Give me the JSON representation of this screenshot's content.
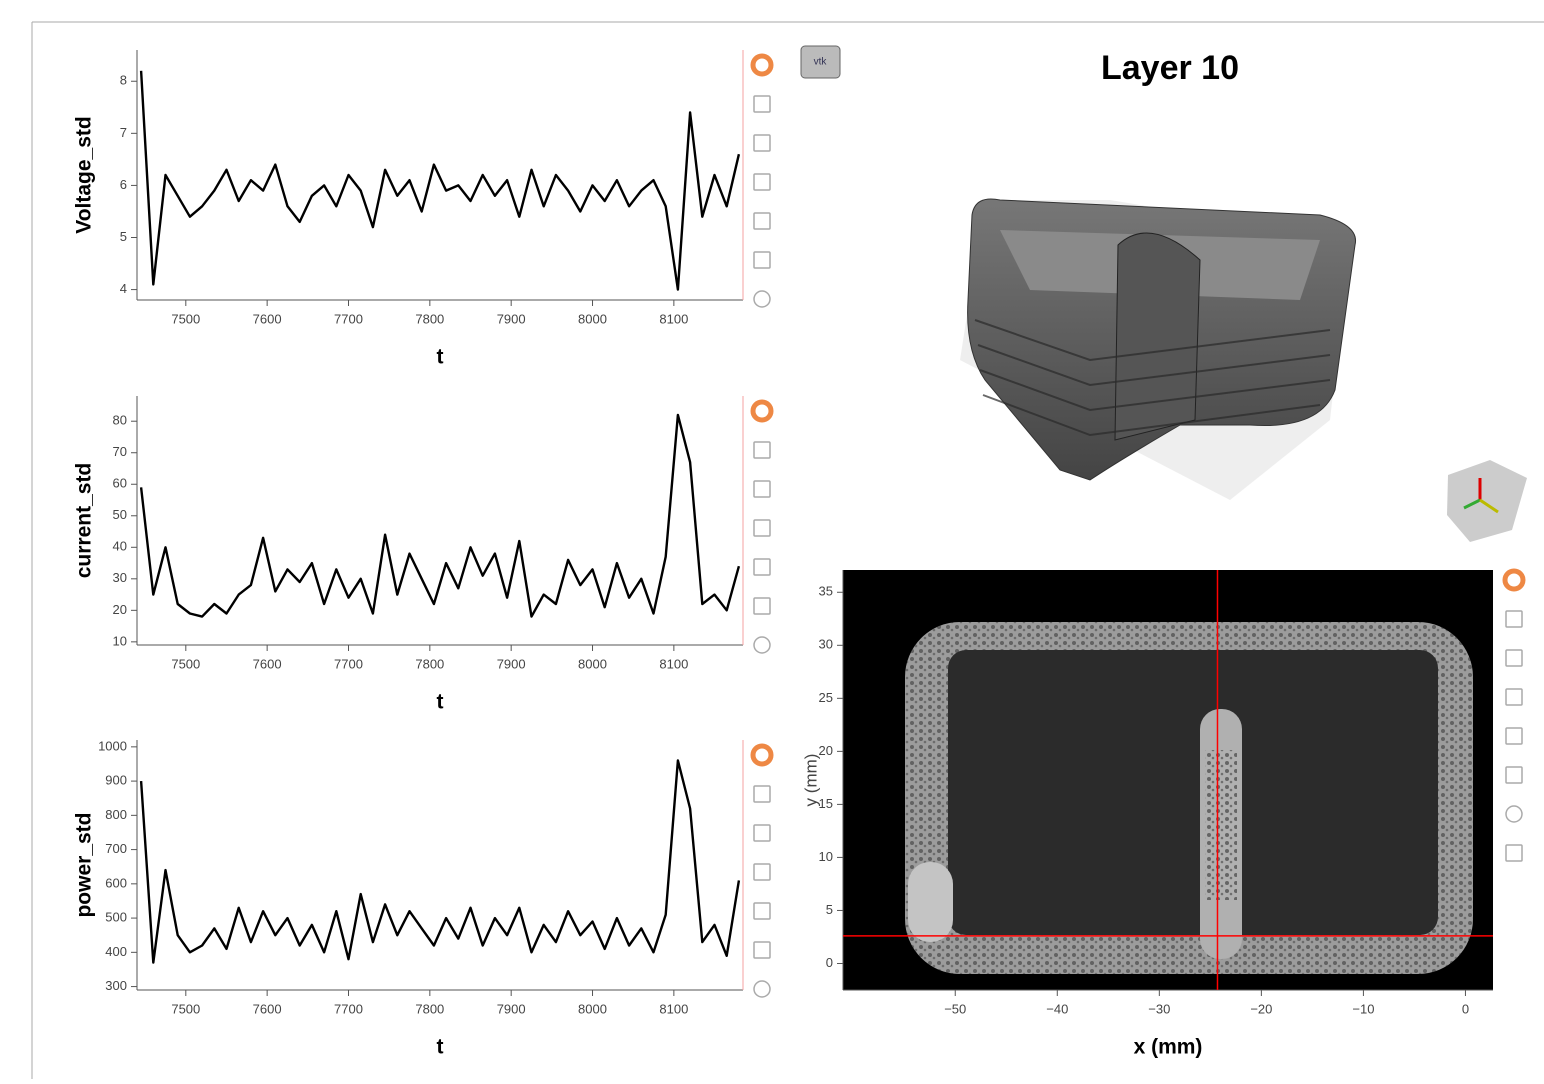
{
  "volume_view": {
    "title": "Layer 10"
  },
  "chart_data": [
    {
      "type": "line",
      "xlabel": "t",
      "ylabel": "Voltage_std",
      "color": "#000000",
      "x": [
        7445,
        7460,
        7475,
        7490,
        7505,
        7520,
        7535,
        7550,
        7565,
        7580,
        7595,
        7610,
        7625,
        7640,
        7655,
        7670,
        7685,
        7700,
        7715,
        7730,
        7745,
        7760,
        7775,
        7790,
        7805,
        7820,
        7835,
        7850,
        7865,
        7880,
        7895,
        7910,
        7925,
        7940,
        7955,
        7970,
        7985,
        8000,
        8015,
        8030,
        8045,
        8060,
        8075,
        8090,
        8105,
        8120,
        8135,
        8150,
        8165,
        8180
      ],
      "values": [
        8.2,
        4.1,
        6.2,
        5.8,
        5.4,
        5.6,
        5.9,
        6.3,
        5.7,
        6.1,
        5.9,
        6.4,
        5.6,
        5.3,
        5.8,
        6.0,
        5.6,
        6.2,
        5.9,
        5.2,
        6.3,
        5.8,
        6.1,
        5.5,
        6.4,
        5.9,
        6.0,
        5.7,
        6.2,
        5.8,
        6.1,
        5.4,
        6.3,
        5.6,
        6.2,
        5.9,
        5.5,
        6.0,
        5.7,
        6.1,
        5.6,
        5.9,
        6.1,
        5.6,
        4.0,
        7.4,
        5.4,
        6.2,
        5.6,
        6.6
      ],
      "xlim": [
        7440,
        8185
      ],
      "ylim": [
        3.8,
        8.6
      ],
      "xticks": [
        7500,
        7600,
        7700,
        7800,
        7900,
        8000,
        8100
      ],
      "yticks": [
        4,
        5,
        6,
        7,
        8
      ]
    },
    {
      "type": "line",
      "xlabel": "t",
      "ylabel": "current_std",
      "color": "#000000",
      "x": [
        7445,
        7460,
        7475,
        7490,
        7505,
        7520,
        7535,
        7550,
        7565,
        7580,
        7595,
        7610,
        7625,
        7640,
        7655,
        7670,
        7685,
        7700,
        7715,
        7730,
        7745,
        7760,
        7775,
        7790,
        7805,
        7820,
        7835,
        7850,
        7865,
        7880,
        7895,
        7910,
        7925,
        7940,
        7955,
        7970,
        7985,
        8000,
        8015,
        8030,
        8045,
        8060,
        8075,
        8090,
        8105,
        8120,
        8135,
        8150,
        8165,
        8180
      ],
      "values": [
        59,
        25,
        40,
        22,
        19,
        18,
        22,
        19,
        25,
        28,
        43,
        26,
        33,
        29,
        35,
        22,
        33,
        24,
        30,
        19,
        44,
        25,
        38,
        30,
        22,
        35,
        27,
        40,
        31,
        38,
        24,
        42,
        18,
        25,
        22,
        36,
        28,
        33,
        21,
        35,
        24,
        30,
        19,
        37,
        82,
        67,
        22,
        25,
        20,
        34
      ],
      "xlim": [
        7440,
        8185
      ],
      "ylim": [
        9,
        88
      ],
      "xticks": [
        7500,
        7600,
        7700,
        7800,
        7900,
        8000,
        8100
      ],
      "yticks": [
        10,
        20,
        30,
        40,
        50,
        60,
        70,
        80
      ]
    },
    {
      "type": "line",
      "xlabel": "t",
      "ylabel": "power_std",
      "color": "#000000",
      "x": [
        7445,
        7460,
        7475,
        7490,
        7505,
        7520,
        7535,
        7550,
        7565,
        7580,
        7595,
        7610,
        7625,
        7640,
        7655,
        7670,
        7685,
        7700,
        7715,
        7730,
        7745,
        7760,
        7775,
        7790,
        7805,
        7820,
        7835,
        7850,
        7865,
        7880,
        7895,
        7910,
        7925,
        7940,
        7955,
        7970,
        7985,
        8000,
        8015,
        8030,
        8045,
        8060,
        8075,
        8090,
        8105,
        8120,
        8135,
        8150,
        8165,
        8180
      ],
      "values": [
        900,
        370,
        640,
        450,
        400,
        420,
        470,
        410,
        530,
        430,
        520,
        450,
        500,
        420,
        480,
        400,
        520,
        380,
        570,
        430,
        540,
        450,
        520,
        470,
        420,
        500,
        440,
        530,
        420,
        500,
        450,
        530,
        400,
        480,
        430,
        520,
        450,
        490,
        410,
        500,
        420,
        470,
        400,
        510,
        960,
        820,
        430,
        480,
        390,
        610
      ],
      "xlim": [
        7440,
        8185
      ],
      "ylim": [
        290,
        1020
      ],
      "xticks": [
        7500,
        7600,
        7700,
        7800,
        7900,
        8000,
        8100
      ],
      "yticks": [
        300,
        400,
        500,
        600,
        700,
        800,
        900,
        1000
      ]
    },
    {
      "type": "image",
      "xlabel": "x (mm)",
      "ylabel": "y (mm)",
      "crosshair_color": "#ff0000",
      "crosshair": {
        "x": -24.3,
        "y": 2.6
      },
      "xlim": [
        -61,
        2.7
      ],
      "ylim": [
        -2.5,
        37.1
      ],
      "xticks": [
        {
          "value": -50,
          "label": "−50"
        },
        {
          "value": -40,
          "label": "−40"
        },
        {
          "value": -30,
          "label": "−30"
        },
        {
          "value": -20,
          "label": "−20"
        },
        {
          "value": -10,
          "label": "−10"
        },
        0
      ],
      "yticks": [
        0,
        5,
        10,
        15,
        20,
        25,
        30,
        35
      ]
    }
  ]
}
